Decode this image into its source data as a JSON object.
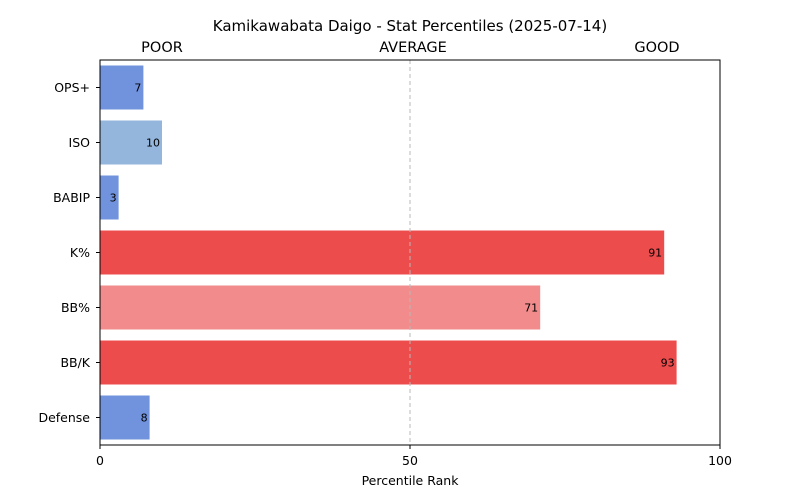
{
  "chart_data": {
    "type": "bar",
    "orientation": "horizontal",
    "title": "Kamikawabata Daigo - Stat Percentiles (2025-07-14)",
    "bands": [
      "POOR",
      "AVERAGE",
      "GOOD"
    ],
    "xlabel": "Percentile Rank",
    "ylabel": "",
    "xlim": [
      0,
      100
    ],
    "xticks": [
      0,
      50,
      100
    ],
    "reference_line": 50,
    "categories": [
      "OPS+",
      "ISO",
      "BABIP",
      "K%",
      "BB%",
      "BB/K",
      "Defense"
    ],
    "values": [
      7,
      10,
      3,
      91,
      71,
      93,
      8
    ],
    "bar_colors": [
      "#7193dd",
      "#94b6dd",
      "#7193dd",
      "#ed4c4c",
      "#f28b8b",
      "#ed4c4c",
      "#7193dd"
    ],
    "grid": false
  }
}
